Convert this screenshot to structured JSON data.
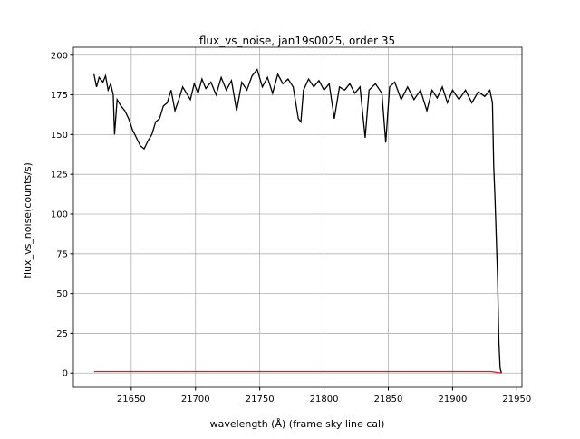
{
  "chart_data": {
    "type": "line",
    "title": "flux_vs_noise, jan19s0025, order 35",
    "xlabel": "wavelength (Å) (frame sky line cal)",
    "ylabel": "flux_vs_noise(counts/s)",
    "xlim": [
      21605,
      21954
    ],
    "ylim": [
      -9,
      205
    ],
    "xticks": [
      21650,
      21700,
      21750,
      21800,
      21850,
      21900,
      21950
    ],
    "yticks": [
      0,
      25,
      50,
      75,
      100,
      125,
      150,
      175,
      200
    ],
    "grid": true,
    "series": [
      {
        "color": "#000000",
        "x": [
          21621,
          21623,
          21625,
          21628,
          21630,
          21632,
          21634,
          21636,
          21637,
          21639,
          21642,
          21645,
          21648,
          21651,
          21654,
          21657,
          21660,
          21663,
          21666,
          21669,
          21672,
          21675,
          21678,
          21681,
          21684,
          21687,
          21690,
          21693,
          21696,
          21699,
          21702,
          21705,
          21708,
          21712,
          21716,
          21720,
          21724,
          21728,
          21732,
          21736,
          21740,
          21744,
          21748,
          21752,
          21756,
          21760,
          21764,
          21768,
          21772,
          21776,
          21780,
          21782,
          21784,
          21788,
          21792,
          21796,
          21800,
          21804,
          21808,
          21812,
          21816,
          21820,
          21824,
          21828,
          21832,
          21835,
          21840,
          21845,
          21848,
          21851,
          21855,
          21860,
          21865,
          21870,
          21875,
          21880,
          21884,
          21888,
          21892,
          21896,
          21900,
          21905,
          21910,
          21915,
          21920,
          21925,
          21929,
          21931,
          21932,
          21933,
          21935,
          21936,
          21937,
          21938
        ],
        "values": [
          188,
          180,
          186,
          183,
          187,
          178,
          182,
          175,
          150,
          172,
          168,
          165,
          160,
          153,
          148,
          143,
          141,
          146,
          150,
          158,
          160,
          168,
          170,
          178,
          165,
          172,
          180,
          176,
          172,
          182,
          176,
          185,
          179,
          183,
          175,
          186,
          178,
          184,
          165,
          183,
          178,
          187,
          191,
          180,
          186,
          176,
          188,
          182,
          185,
          180,
          160,
          158,
          178,
          185,
          180,
          184,
          178,
          182,
          160,
          180,
          178,
          182,
          176,
          180,
          148,
          178,
          182,
          176,
          145,
          180,
          183,
          172,
          180,
          172,
          178,
          165,
          178,
          173,
          180,
          170,
          178,
          172,
          178,
          170,
          177,
          174,
          178,
          170,
          130,
          110,
          60,
          20,
          3,
          0
        ]
      },
      {
        "color": "#e41a1c",
        "x": [
          21621,
          21930,
          21938
        ],
        "values": [
          1,
          1,
          0
        ]
      }
    ]
  }
}
